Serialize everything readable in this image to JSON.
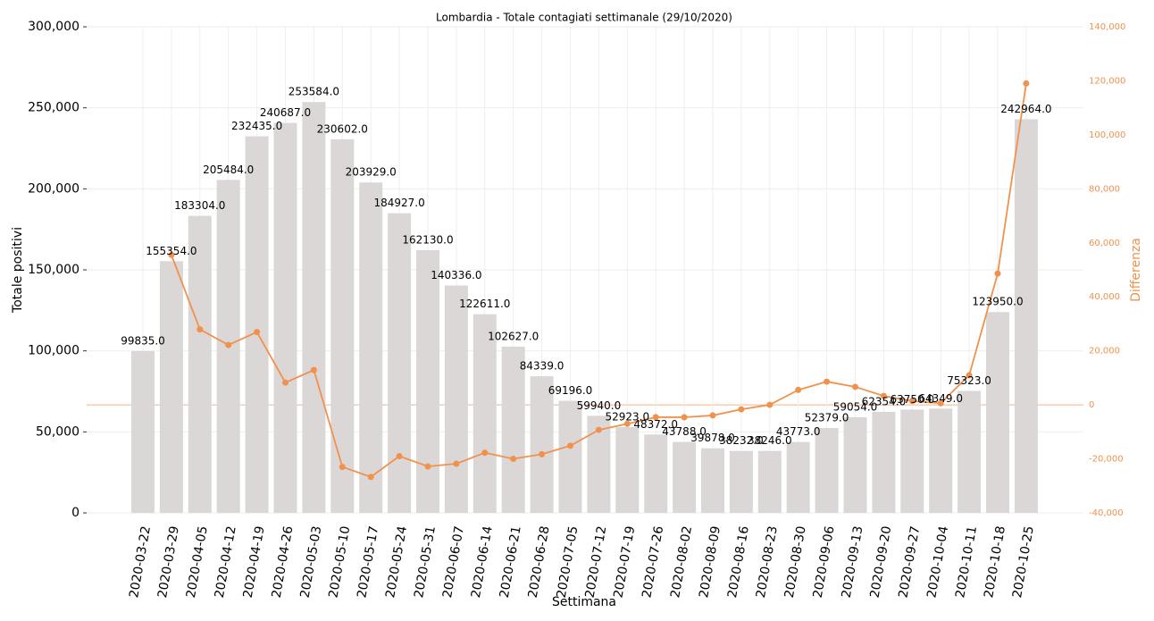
{
  "chart_data": {
    "type": "bar_line",
    "title": "Lombardia - Totale contagiati settimanale (29/10/2020)",
    "xlabel": "Settimana",
    "ylabel": "Totale positivi",
    "y2label": "Differenza",
    "categories": [
      "2020-03-22",
      "2020-03-29",
      "2020-04-05",
      "2020-04-12",
      "2020-04-19",
      "2020-04-26",
      "2020-05-03",
      "2020-05-10",
      "2020-05-17",
      "2020-05-24",
      "2020-05-31",
      "2020-06-07",
      "2020-06-14",
      "2020-06-21",
      "2020-06-28",
      "2020-07-05",
      "2020-07-12",
      "2020-07-19",
      "2020-07-26",
      "2020-08-02",
      "2020-08-09",
      "2020-08-16",
      "2020-08-23",
      "2020-08-30",
      "2020-09-06",
      "2020-09-13",
      "2020-09-20",
      "2020-09-27",
      "2020-10-04",
      "2020-10-11",
      "2020-10-18",
      "2020-10-25"
    ],
    "series": [
      {
        "name": "Totale positivi",
        "type": "bar",
        "color": "#dbd7d7",
        "values": [
          99835,
          155354,
          183304,
          205484,
          232435,
          240687,
          253584,
          230602,
          203929,
          184927,
          162130,
          140336,
          122611,
          102627,
          84339,
          69196,
          59940,
          52923,
          48372,
          43788,
          39878,
          38232,
          38246,
          43773,
          52379,
          59054,
          62354,
          63750,
          64349,
          75323,
          123950,
          242964
        ],
        "value_labels": [
          "99835.0",
          "155354.0",
          "183304.0",
          "205484.0",
          "232435.0",
          "240687.0",
          "253584.0",
          "230602.0",
          "203929.0",
          "184927.0",
          "162130.0",
          "140336.0",
          "122611.0",
          "102627.0",
          "84339.0",
          "69196.0",
          "59940.0",
          "52923.0",
          "48372.0",
          "43788.0",
          "39878.0",
          "38232.0",
          "38246.0",
          "43773.0",
          "52379.0",
          "59054.0",
          "62354.0",
          "63750.0",
          "64349.0",
          "75323.0",
          "123950.0",
          "242964.0"
        ]
      },
      {
        "name": "Differenza",
        "type": "line",
        "axis": "y2",
        "color": "#f0924e",
        "values": [
          null,
          55519,
          27950,
          22180,
          26951,
          8252,
          12897,
          -22982,
          -26673,
          -19002,
          -22797,
          -21794,
          -17725,
          -19984,
          -18288,
          -15143,
          -9256,
          -7017,
          -4551,
          -4584,
          -3910,
          -1646,
          14,
          5527,
          8606,
          6675,
          3300,
          1396,
          599,
          10974,
          48627,
          119014
        ]
      }
    ],
    "ylim": [
      0,
      300000
    ],
    "yticks": [
      0,
      {
        "value": 50000,
        "label": "50,000"
      },
      {
        "value": 100000,
        "label": "100,000"
      },
      {
        "value": 150000,
        "label": "150,000"
      },
      {
        "value": 200000,
        "label": "200,000"
      },
      {
        "value": 250000,
        "label": "250,000"
      },
      {
        "value": 300000,
        "label": "300,000"
      }
    ],
    "y2lim": [
      -40000,
      140000
    ],
    "y2ticks": [
      {
        "value": -40000,
        "label": "-40,000"
      },
      {
        "value": -20000,
        "label": "-20,000"
      },
      0,
      {
        "value": 20000,
        "label": "20,000"
      },
      {
        "value": 40000,
        "label": "40,000"
      },
      {
        "value": 60000,
        "label": "60,000"
      },
      {
        "value": 80000,
        "label": "80,000"
      },
      {
        "value": 100000,
        "label": "100,000"
      },
      {
        "value": 120000,
        "label": "120,000"
      },
      {
        "value": 140000,
        "label": "140,000"
      }
    ],
    "grid": true
  }
}
